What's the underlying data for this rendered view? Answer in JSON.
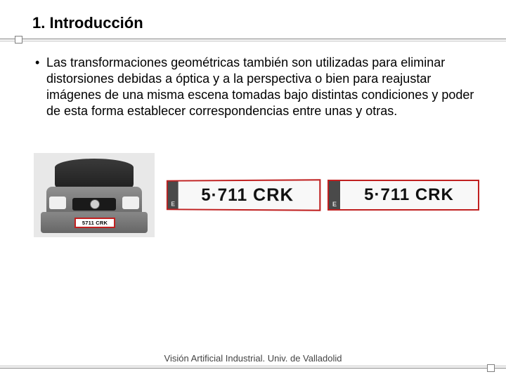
{
  "title": "1. Introducción",
  "bullet": "•",
  "body": "Las transformaciones geométricas también son utilizadas para eliminar distorsiones debidas a óptica y a la perspectiva o bien para reajustar imágenes de una misma escena tomadas bajo distintas condiciones y poder de esta forma establecer correspondencias entre unas y otras.",
  "plate": {
    "eu_label": "E",
    "number": "5711 CRK",
    "number_dot": "5·711 CRK",
    "border_color": "#c02020",
    "bg_color": "#f8f8f8",
    "font_color": "#111111"
  },
  "footer": "Visión Artificial Industrial. Univ. de Valladolid",
  "colors": {
    "divider_dark": "#808080",
    "divider_light": "#c0c0c0",
    "text": "#000000",
    "footer_text": "#444444"
  }
}
